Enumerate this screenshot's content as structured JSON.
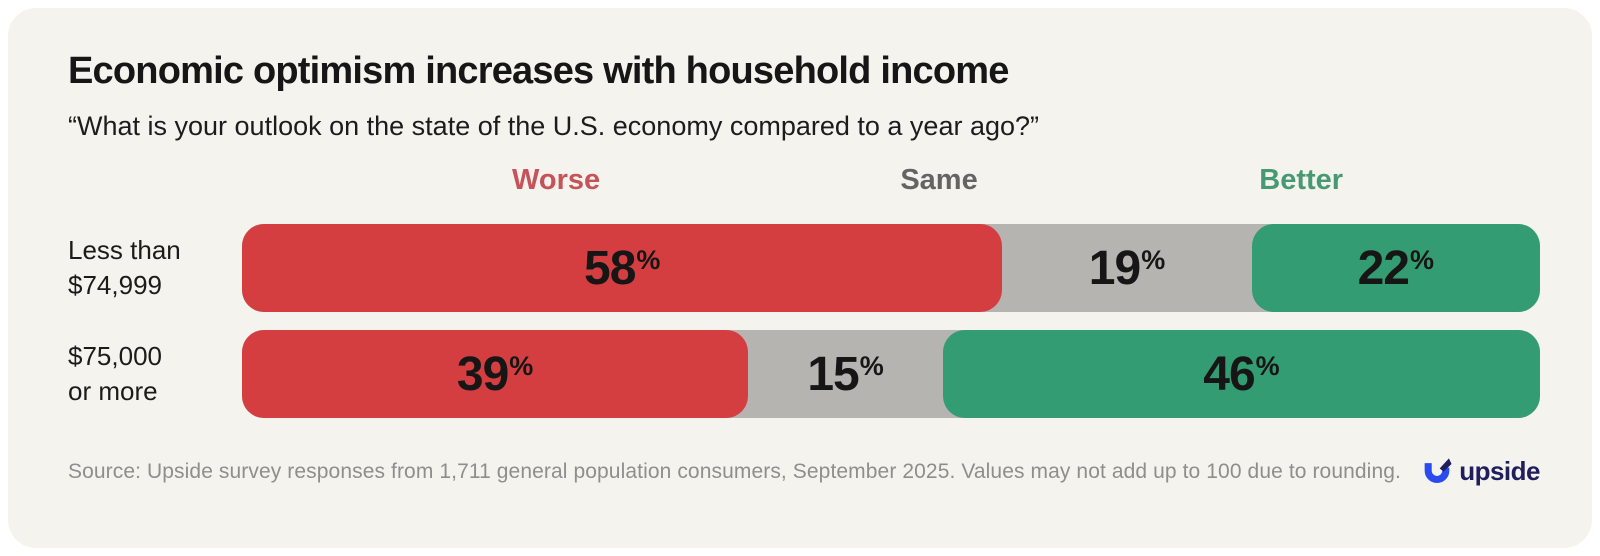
{
  "header": {
    "title": "Economic optimism increases with household income",
    "subtitle": "“What is your outlook on the state of the U.S. economy compared to a year ago?”"
  },
  "chart_data": {
    "type": "bar",
    "variant": "horizontal-stacked-100",
    "unit": "%",
    "title": "Economic optimism increases with household income",
    "subtitle": "“What is your outlook on the state of the U.S. economy compared to a year ago?”",
    "column_headers": [
      {
        "key": "worse",
        "label": "Worse",
        "color": "#c5545a"
      },
      {
        "key": "same",
        "label": "Same",
        "color": "#646464"
      },
      {
        "key": "better",
        "label": "Better",
        "color": "#479974"
      }
    ],
    "segment_colors": {
      "worse": "#d43e40",
      "same": "#b5b4b1",
      "better": "#349c72"
    },
    "rows": [
      {
        "label": "Less than\n$74,999",
        "worse": 58,
        "same": 19,
        "better": 22
      },
      {
        "label": "$75,000\nor more",
        "worse": 39,
        "same": 15,
        "better": 46
      }
    ]
  },
  "footer": {
    "source": "Source: Upside survey responses from 1,711 general population consumers, September 2025. Values may not add up to 100 due to rounding.",
    "logo_text": "upside",
    "logo_colors": {
      "mark_blue": "#2a4bf0",
      "mark_navy": "#201f5e"
    }
  }
}
